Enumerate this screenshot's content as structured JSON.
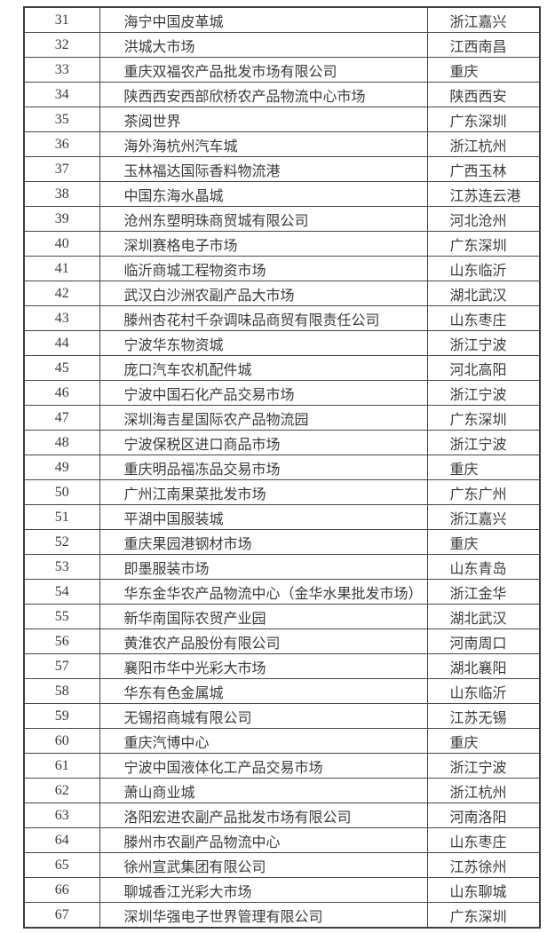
{
  "page": {
    "background_color": "#ffffff",
    "border_color": "#3e3e3e",
    "text_color": "#3a3a3a"
  },
  "table": {
    "rows": [
      {
        "rank": "31",
        "name": "海宁中国皮革城",
        "location": "浙江嘉兴"
      },
      {
        "rank": "32",
        "name": "洪城大市场",
        "location": "江西南昌"
      },
      {
        "rank": "33",
        "name": "重庆双福农产品批发市场有限公司",
        "location": "重庆"
      },
      {
        "rank": "34",
        "name": "陕西西安西部欣桥农产品物流中心市场",
        "location": "陕西西安"
      },
      {
        "rank": "35",
        "name": "茶阅世界",
        "location": "广东深圳"
      },
      {
        "rank": "36",
        "name": "海外海杭州汽车城",
        "location": "浙江杭州"
      },
      {
        "rank": "37",
        "name": "玉林福达国际香料物流港",
        "location": "广西玉林"
      },
      {
        "rank": "38",
        "name": "中国东海水晶城",
        "location": "江苏连云港"
      },
      {
        "rank": "39",
        "name": "沧州东塑明珠商贸城有限公司",
        "location": "河北沧州"
      },
      {
        "rank": "40",
        "name": "深圳赛格电子市场",
        "location": "广东深圳"
      },
      {
        "rank": "41",
        "name": "临沂商城工程物资市场",
        "location": "山东临沂"
      },
      {
        "rank": "42",
        "name": "武汉白沙洲农副产品大市场",
        "location": "湖北武汉"
      },
      {
        "rank": "43",
        "name": "滕州杏花村千杂调味品商贸有限责任公司",
        "location": "山东枣庄"
      },
      {
        "rank": "44",
        "name": "宁波华东物资城",
        "location": "浙江宁波"
      },
      {
        "rank": "45",
        "name": "庞口汽车农机配件城",
        "location": "河北高阳"
      },
      {
        "rank": "46",
        "name": "宁波中国石化产品交易市场",
        "location": "浙江宁波"
      },
      {
        "rank": "47",
        "name": "深圳海吉星国际农产品物流园",
        "location": "广东深圳"
      },
      {
        "rank": "48",
        "name": "宁波保税区进口商品市场",
        "location": "浙江宁波"
      },
      {
        "rank": "49",
        "name": "重庆明品福冻品交易市场",
        "location": "重庆"
      },
      {
        "rank": "50",
        "name": "广州江南果菜批发市场",
        "location": "广东广州"
      },
      {
        "rank": "51",
        "name": "平湖中国服装城",
        "location": "浙江嘉兴"
      },
      {
        "rank": "52",
        "name": "重庆果园港钢材市场",
        "location": "重庆"
      },
      {
        "rank": "53",
        "name": "即墨服装市场",
        "location": "山东青岛"
      },
      {
        "rank": "54",
        "name": "华东金华农产品物流中心（金华水果批发市场）",
        "location": "浙江金华"
      },
      {
        "rank": "55",
        "name": "新华南国际农贸产业园",
        "location": "湖北武汉"
      },
      {
        "rank": "56",
        "name": "黄淮农产品股份有限公司",
        "location": "河南周口"
      },
      {
        "rank": "57",
        "name": "襄阳市华中光彩大市场",
        "location": "湖北襄阳"
      },
      {
        "rank": "58",
        "name": "华东有色金属城",
        "location": "山东临沂"
      },
      {
        "rank": "59",
        "name": "无锡招商城有限公司",
        "location": "江苏无锡"
      },
      {
        "rank": "60",
        "name": "重庆汽博中心",
        "location": "重庆"
      },
      {
        "rank": "61",
        "name": "宁波中国液体化工产品交易市场",
        "location": "浙江宁波"
      },
      {
        "rank": "62",
        "name": "萧山商业城",
        "location": "浙江杭州"
      },
      {
        "rank": "63",
        "name": "洛阳宏进农副产品批发市场有限公司",
        "location": "河南洛阳"
      },
      {
        "rank": "64",
        "name": "滕州市农副产品物流中心",
        "location": "山东枣庄"
      },
      {
        "rank": "65",
        "name": "徐州宣武集团有限公司",
        "location": "江苏徐州"
      },
      {
        "rank": "66",
        "name": "聊城香江光彩大市场",
        "location": "山东聊城"
      },
      {
        "rank": "67",
        "name": "深圳华强电子世界管理有限公司",
        "location": "广东深圳"
      }
    ]
  }
}
